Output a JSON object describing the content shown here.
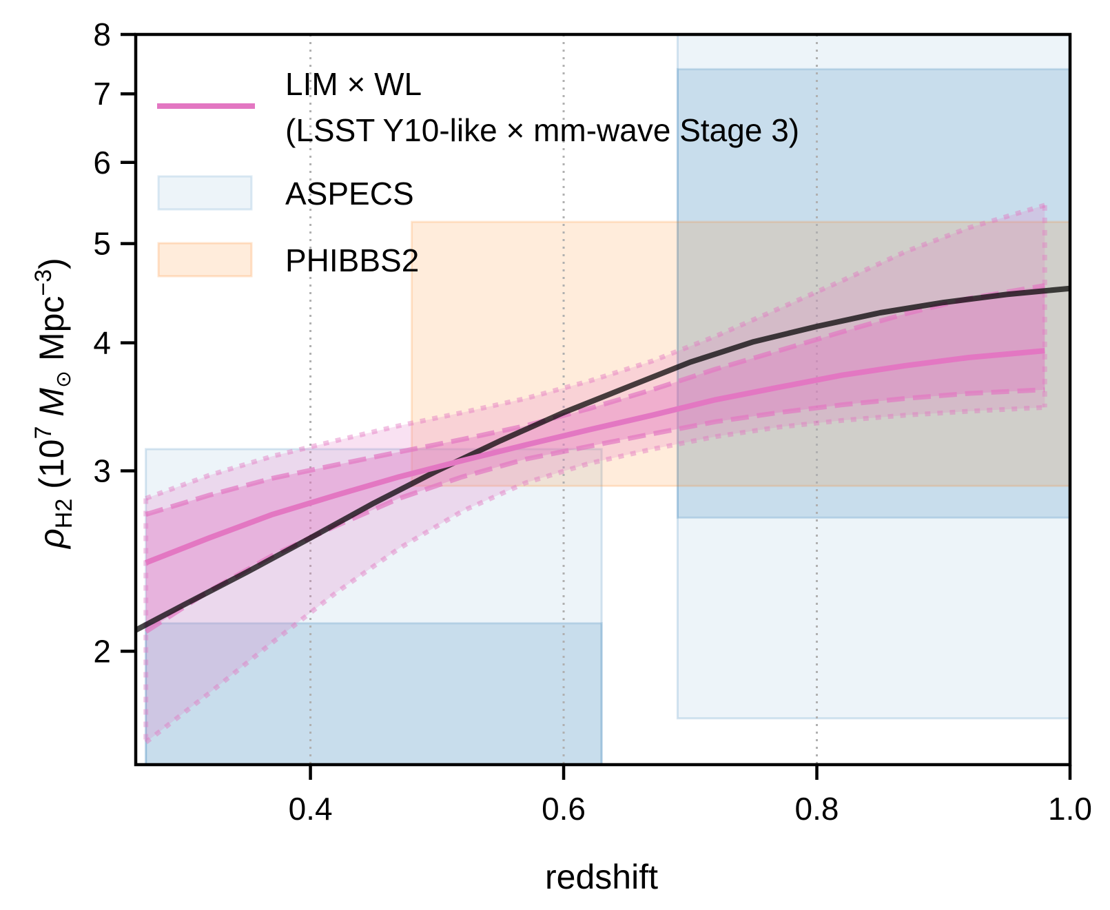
{
  "chart_data": {
    "type": "line",
    "title": "",
    "xlabel": "redshift",
    "ylabel": {
      "symbol": "ρ",
      "subscript": "H2",
      "units_prefix": " (10",
      "units_exp": "7",
      "units_mass": " M",
      "units_sun": "⊙",
      "units_mpc": " Mpc",
      "units_mpc_exp": "−3",
      "units_close": ")"
    },
    "xlim": [
      0.262,
      1.0
    ],
    "ylim": [
      1.55,
      8.0
    ],
    "yscale": "log",
    "grid": "vertical dotted",
    "x_ticks": [
      0.4,
      0.6,
      0.8,
      1.0
    ],
    "x_tick_labels": [
      "0.4",
      "0.6",
      "0.8",
      "1.0"
    ],
    "y_ticks": [
      2,
      3,
      4,
      5,
      6,
      7,
      8
    ],
    "y_tick_labels": [
      "2",
      "3",
      "4",
      "5",
      "6",
      "7",
      "8"
    ],
    "legend": {
      "location": "top-left",
      "entries": [
        {
          "label_line1": "LIM × WL",
          "label_line2": "(LSST Y10-like × mm-wave Stage 3)",
          "style": "line",
          "color": "#e377c2"
        },
        {
          "label": "ASPECS",
          "style": "patch",
          "color": "#1f77b4"
        },
        {
          "label": "PHIBBS2",
          "style": "patch",
          "color": "#ff7f0e"
        }
      ]
    },
    "boxes": [
      {
        "group": "ASPECS",
        "tier": "outer",
        "x": [
          0.27,
          0.63
        ],
        "y": [
          1.55,
          3.15
        ],
        "color": "#1f77b4"
      },
      {
        "group": "ASPECS",
        "tier": "inner",
        "x": [
          0.27,
          0.63
        ],
        "y": [
          1.55,
          2.13
        ],
        "color": "#1f77b4"
      },
      {
        "group": "ASPECS",
        "tier": "outer",
        "x": [
          0.69,
          1.0
        ],
        "y": [
          1.72,
          8.0
        ],
        "color": "#1f77b4"
      },
      {
        "group": "ASPECS",
        "tier": "inner",
        "x": [
          0.69,
          1.0
        ],
        "y": [
          2.7,
          7.4
        ],
        "color": "#1f77b4"
      },
      {
        "group": "PHIBBS2",
        "tier": "single",
        "x": [
          0.48,
          1.0
        ],
        "y": [
          2.9,
          5.25
        ],
        "color": "#ff7f0e"
      }
    ],
    "series": [
      {
        "type": "model",
        "color": "#000000",
        "x": [
          0.25,
          0.3,
          0.35,
          0.4,
          0.45,
          0.5,
          0.55,
          0.6,
          0.65,
          0.7,
          0.75,
          0.8,
          0.85,
          0.9,
          0.95,
          1.0
        ],
        "y": [
          2.06,
          2.22,
          2.39,
          2.58,
          2.79,
          3.0,
          3.21,
          3.42,
          3.62,
          3.83,
          4.01,
          4.15,
          4.28,
          4.38,
          4.46,
          4.52
        ]
      },
      {
        "name": "LIM × WL",
        "color": "#e377c2",
        "x": [
          0.27,
          0.32,
          0.37,
          0.42,
          0.47,
          0.52,
          0.57,
          0.62,
          0.67,
          0.72,
          0.77,
          0.82,
          0.87,
          0.92,
          0.98
        ],
        "y": [
          2.44,
          2.58,
          2.72,
          2.84,
          2.96,
          3.07,
          3.18,
          3.29,
          3.4,
          3.52,
          3.62,
          3.72,
          3.8,
          3.87,
          3.93
        ],
        "band_1sigma_low": [
          2.09,
          2.29,
          2.48,
          2.65,
          2.82,
          2.96,
          3.08,
          3.17,
          3.26,
          3.35,
          3.42,
          3.48,
          3.53,
          3.57,
          3.6
        ],
        "band_1sigma_high": [
          2.72,
          2.84,
          2.95,
          3.04,
          3.13,
          3.22,
          3.32,
          3.45,
          3.6,
          3.77,
          3.93,
          4.1,
          4.27,
          4.42,
          4.55
        ],
        "band_2sigma_low": [
          1.63,
          1.82,
          2.04,
          2.28,
          2.52,
          2.74,
          2.92,
          3.05,
          3.15,
          3.24,
          3.31,
          3.36,
          3.4,
          3.43,
          3.46
        ],
        "band_2sigma_high": [
          2.82,
          2.97,
          3.1,
          3.21,
          3.32,
          3.42,
          3.53,
          3.67,
          3.84,
          4.06,
          4.32,
          4.6,
          4.91,
          5.18,
          5.45
        ]
      }
    ]
  }
}
